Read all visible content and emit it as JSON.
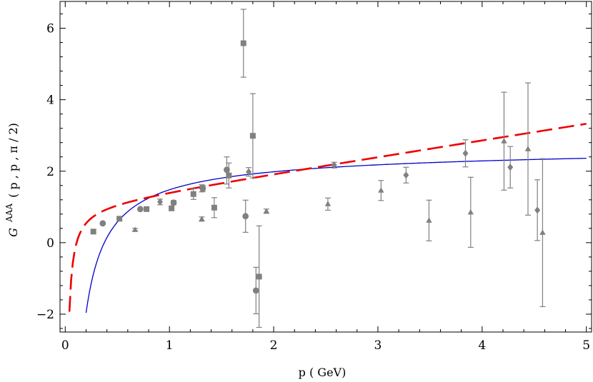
{
  "chart_data": {
    "type": "scatter",
    "xlabel": "p ( GeV)",
    "ylabel": {
      "symbol": "G",
      "superscript": "AAA",
      "args": "( p , p , π / 2)"
    },
    "xlim": [
      -0.05,
      5.05
    ],
    "ylim": [
      -2.5,
      6.75
    ],
    "x_ticks": [
      0,
      1,
      2,
      3,
      4,
      5
    ],
    "x_tick_labels": [
      "0",
      "1",
      "2",
      "3",
      "4",
      "5"
    ],
    "y_ticks": [
      -2,
      0,
      2,
      4,
      6
    ],
    "y_tick_labels": [
      "−2",
      "0",
      "2",
      "4",
      "6"
    ],
    "colors": {
      "points": "#808080",
      "solid_curve": "#0000cc",
      "dashed_curve": "#ee0000"
    },
    "series": [
      {
        "marker": "circle",
        "points": [
          {
            "x": 0.36,
            "y": 0.54,
            "err": 0
          },
          {
            "x": 0.72,
            "y": 0.94,
            "err": 0
          },
          {
            "x": 1.04,
            "y": 1.12,
            "err": 0.06
          },
          {
            "x": 1.32,
            "y": 1.52,
            "err": 0.08
          },
          {
            "x": 1.55,
            "y": 2.04,
            "err": 0
          },
          {
            "x": 1.73,
            "y": 0.74,
            "err": 0.45
          },
          {
            "x": 1.83,
            "y": -1.34,
            "err": 0.65
          }
        ]
      },
      {
        "marker": "square",
        "points": [
          {
            "x": 0.27,
            "y": 0.31,
            "err": 0.05
          },
          {
            "x": 0.52,
            "y": 0.67,
            "err": 0
          },
          {
            "x": 0.78,
            "y": 0.94,
            "err": 0.05
          },
          {
            "x": 1.02,
            "y": 0.96,
            "err": 0.06
          },
          {
            "x": 1.23,
            "y": 1.36,
            "err": 0.15
          },
          {
            "x": 1.43,
            "y": 0.98,
            "err": 0.28
          },
          {
            "x": 1.57,
            "y": 1.88,
            "err": 0.35
          },
          {
            "x": 1.71,
            "y": 5.58,
            "err": 0.95
          },
          {
            "x": 1.8,
            "y": 2.99,
            "err": 1.18
          },
          {
            "x": 1.86,
            "y": -0.95,
            "err": 1.42
          }
        ]
      },
      {
        "marker": "triangle",
        "points": [
          {
            "x": 0.67,
            "y": 0.36,
            "err": 0.04
          },
          {
            "x": 1.31,
            "y": 0.66,
            "err": 0.06
          },
          {
            "x": 1.93,
            "y": 0.88,
            "err": 0.06
          },
          {
            "x": 2.52,
            "y": 1.08,
            "err": 0.17
          },
          {
            "x": 3.03,
            "y": 1.46,
            "err": 0.28
          },
          {
            "x": 3.49,
            "y": 0.62,
            "err": 0.57
          },
          {
            "x": 3.89,
            "y": 0.85,
            "err": 0.98
          },
          {
            "x": 4.21,
            "y": 2.84,
            "err": 1.37
          },
          {
            "x": 4.44,
            "y": 2.62,
            "err": 1.85
          },
          {
            "x": 4.58,
            "y": 0.28,
            "err": 2.07
          }
        ]
      },
      {
        "marker": "diamond",
        "points": [
          {
            "x": 0.91,
            "y": 1.14,
            "err": 0.08
          },
          {
            "x": 1.31,
            "y": 1.52,
            "err": 0.1
          },
          {
            "x": 1.55,
            "y": 2.02,
            "err": 0.38
          },
          {
            "x": 1.76,
            "y": 1.98,
            "err": 0.12
          },
          {
            "x": 2.58,
            "y": 2.17,
            "err": 0.08
          },
          {
            "x": 3.27,
            "y": 1.89,
            "err": 0.22
          },
          {
            "x": 3.84,
            "y": 2.5,
            "err": 0.38
          },
          {
            "x": 4.27,
            "y": 2.11,
            "err": 0.58
          },
          {
            "x": 4.53,
            "y": 0.91,
            "err": 0.85
          }
        ]
      }
    ],
    "curves": [
      {
        "style": "solid",
        "model": "a + b*ln(x) - c/x",
        "params": {
          "a": 2.28,
          "b": 0.15,
          "c": 0.8
        },
        "x_range": [
          0.2,
          5.0
        ]
      },
      {
        "style": "dashed",
        "model": "a + b*x - c/x",
        "params": {
          "a": 1.05,
          "b": 0.46,
          "c": 0.12
        },
        "x_range": [
          0.04,
          5.0
        ]
      }
    ]
  }
}
